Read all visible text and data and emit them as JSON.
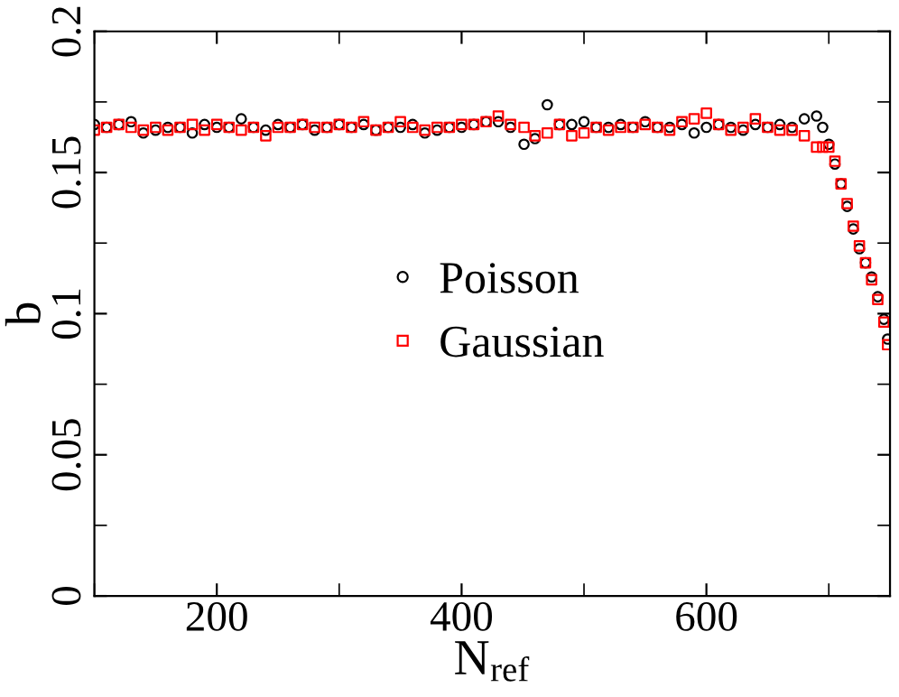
{
  "chart_data": {
    "type": "scatter",
    "xlabel": "N$_{ref}$",
    "ylabel": "b",
    "xlim": [
      100,
      750
    ],
    "xticks": [
      200,
      400,
      600
    ],
    "ylim": [
      0,
      0.2
    ],
    "yticks": [
      0,
      0.05,
      0.1,
      0.15,
      0.2
    ],
    "grid": false,
    "legend": "center",
    "x": [
      100,
      110,
      120,
      130,
      140,
      150,
      160,
      170,
      180,
      190,
      200,
      210,
      220,
      230,
      240,
      250,
      260,
      270,
      280,
      290,
      300,
      310,
      320,
      330,
      340,
      350,
      360,
      370,
      380,
      390,
      400,
      410,
      420,
      430,
      440,
      451,
      460,
      470,
      480,
      490,
      500,
      510,
      520,
      530,
      540,
      550,
      560,
      570,
      580,
      590,
      600,
      610,
      620,
      630,
      640,
      650,
      660,
      670,
      680,
      690,
      695,
      700,
      705,
      710,
      715,
      720,
      725,
      730,
      735,
      740,
      745,
      748
    ],
    "series": [
      {
        "name": "Poisson",
        "color": "#000000",
        "marker": "circle",
        "values": [
          0.167,
          0.166,
          0.167,
          0.168,
          0.164,
          0.165,
          0.166,
          0.166,
          0.164,
          0.167,
          0.166,
          0.166,
          0.169,
          0.166,
          0.165,
          0.167,
          0.166,
          0.167,
          0.165,
          0.166,
          0.167,
          0.166,
          0.167,
          0.165,
          0.166,
          0.166,
          0.167,
          0.164,
          0.165,
          0.166,
          0.166,
          0.167,
          0.168,
          0.168,
          0.166,
          0.16,
          0.162,
          0.174,
          0.167,
          0.167,
          0.168,
          0.166,
          0.166,
          0.167,
          0.166,
          0.168,
          0.166,
          0.166,
          0.167,
          0.164,
          0.166,
          0.167,
          0.166,
          0.165,
          0.167,
          0.166,
          0.167,
          0.166,
          0.169,
          0.17,
          0.166,
          0.16,
          0.153,
          0.146,
          0.138,
          0.13,
          0.123,
          0.118,
          0.113,
          0.106,
          0.098,
          0.091
        ]
      },
      {
        "name": "Gaussian",
        "color": "#ff0000",
        "marker": "square",
        "values": [
          0.165,
          0.166,
          0.167,
          0.166,
          0.165,
          0.166,
          0.165,
          0.166,
          0.167,
          0.165,
          0.167,
          0.166,
          0.165,
          0.166,
          0.163,
          0.166,
          0.166,
          0.167,
          0.166,
          0.166,
          0.167,
          0.166,
          0.168,
          0.165,
          0.166,
          0.168,
          0.166,
          0.165,
          0.166,
          0.166,
          0.167,
          0.167,
          0.168,
          0.17,
          0.167,
          0.166,
          0.163,
          0.164,
          0.167,
          0.163,
          0.164,
          0.166,
          0.165,
          0.166,
          0.166,
          0.167,
          0.166,
          0.165,
          0.168,
          0.169,
          0.171,
          0.167,
          0.165,
          0.166,
          0.169,
          0.166,
          0.165,
          0.165,
          0.163,
          0.159,
          0.159,
          0.159,
          0.154,
          0.146,
          0.139,
          0.131,
          0.124,
          0.118,
          0.112,
          0.105,
          0.097,
          0.089
        ]
      }
    ]
  }
}
